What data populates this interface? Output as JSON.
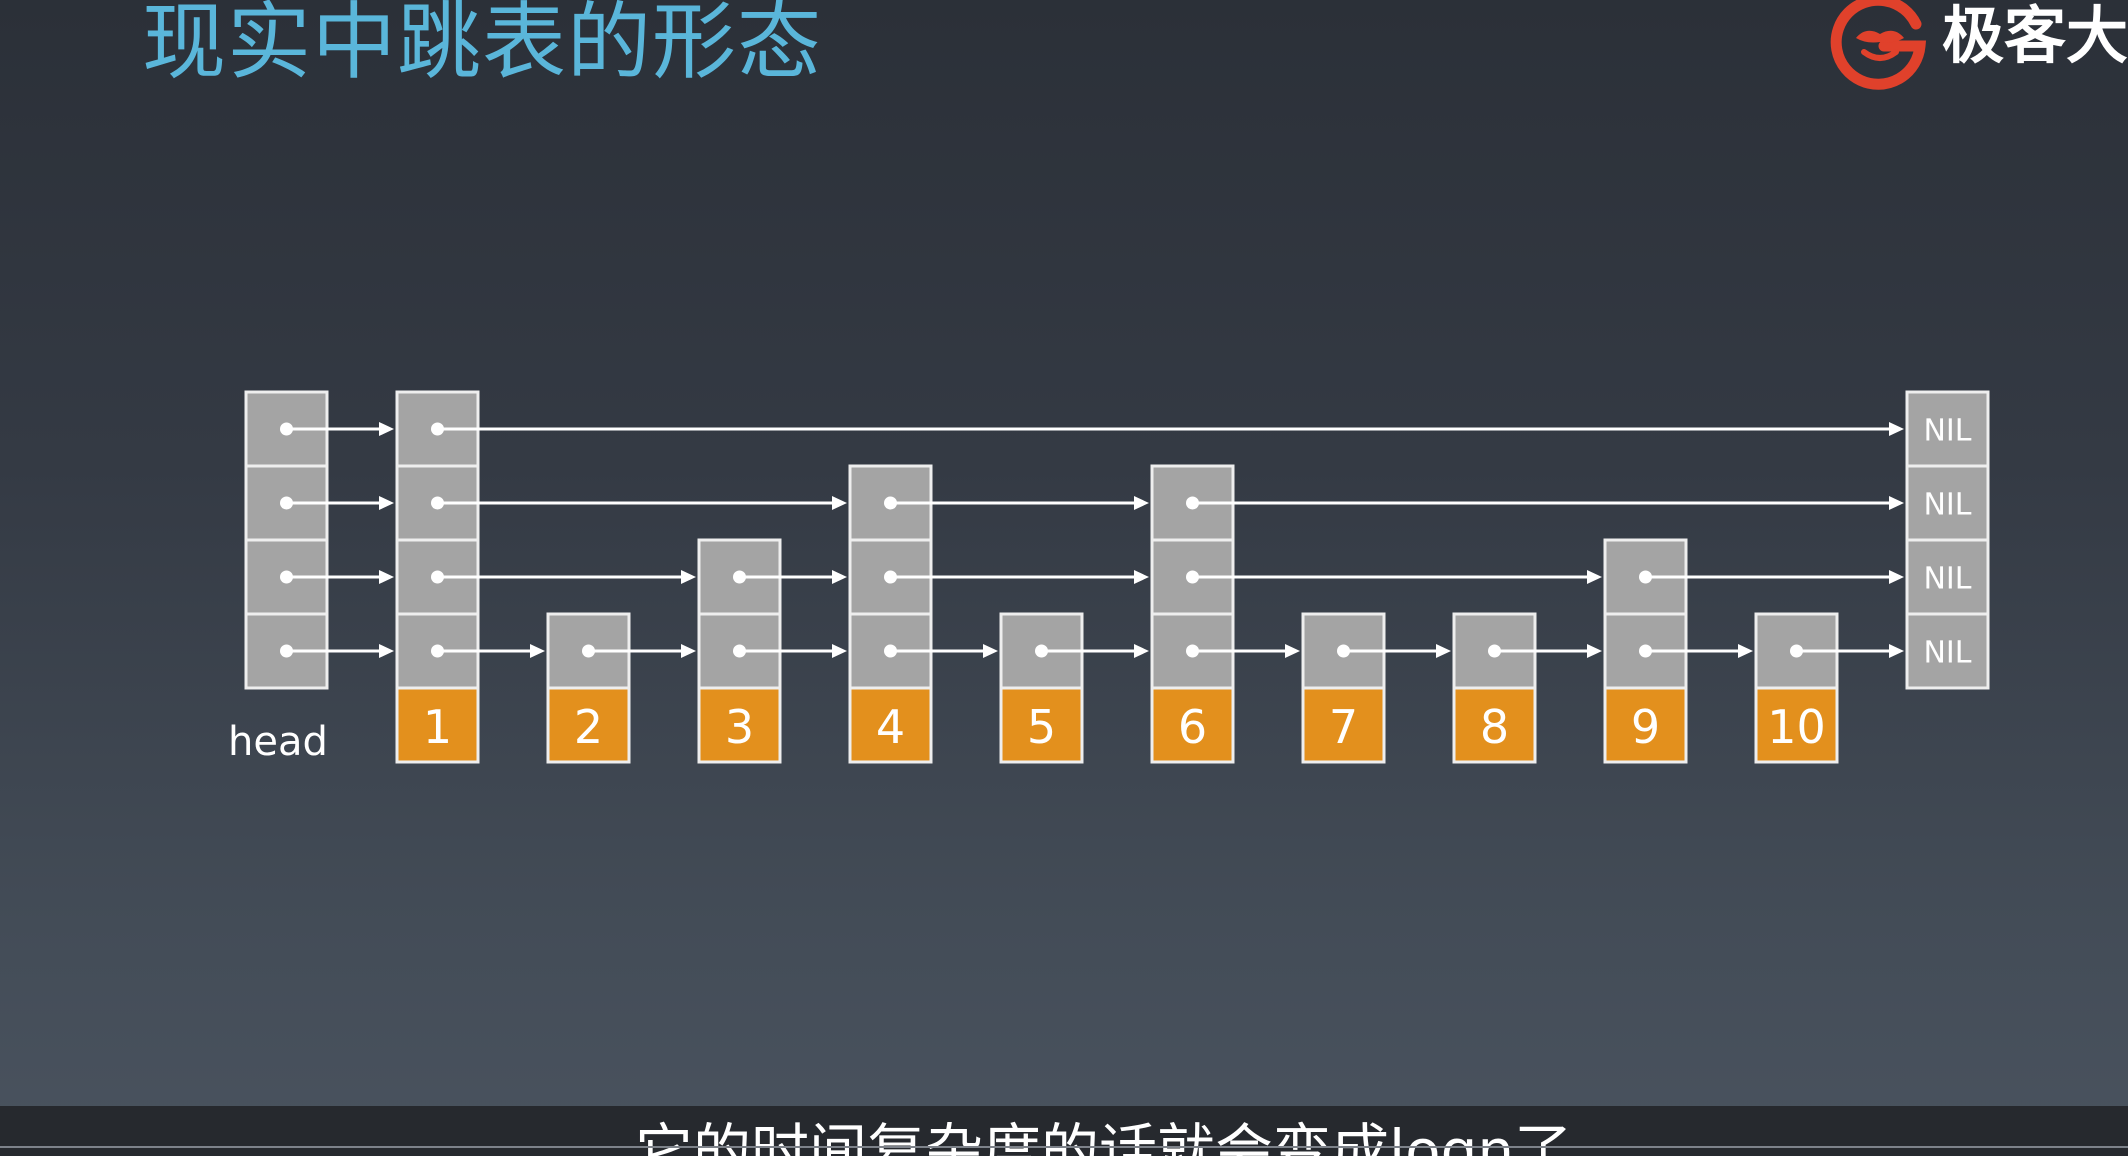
{
  "slide": {
    "title": "现实中跳表的形态",
    "title_color": "#5ab6da"
  },
  "logo": {
    "icon": "geekbang-g-logo-icon",
    "text": "极客大",
    "color": "#e0412b"
  },
  "diagram": {
    "type": "skip-list",
    "head_label": "head",
    "nil_label": "NIL",
    "max_level": 4,
    "nodes": [
      {
        "label": "1",
        "levels": 4
      },
      {
        "label": "2",
        "levels": 1
      },
      {
        "label": "3",
        "levels": 2
      },
      {
        "label": "4",
        "levels": 3
      },
      {
        "label": "5",
        "levels": 1
      },
      {
        "label": "6",
        "levels": 3
      },
      {
        "label": "7",
        "levels": 1
      },
      {
        "label": "8",
        "levels": 1
      },
      {
        "label": "9",
        "levels": 2
      },
      {
        "label": "10",
        "levels": 1
      }
    ],
    "colors": {
      "pointer_cell": "#a4a4a4",
      "value_cell": "#e3901d",
      "border": "#eeeeee",
      "arrow": "#ffffff",
      "text": "#ffffff"
    }
  },
  "subtitle": {
    "text": "它的时间复杂度的话就会变成logn了"
  }
}
